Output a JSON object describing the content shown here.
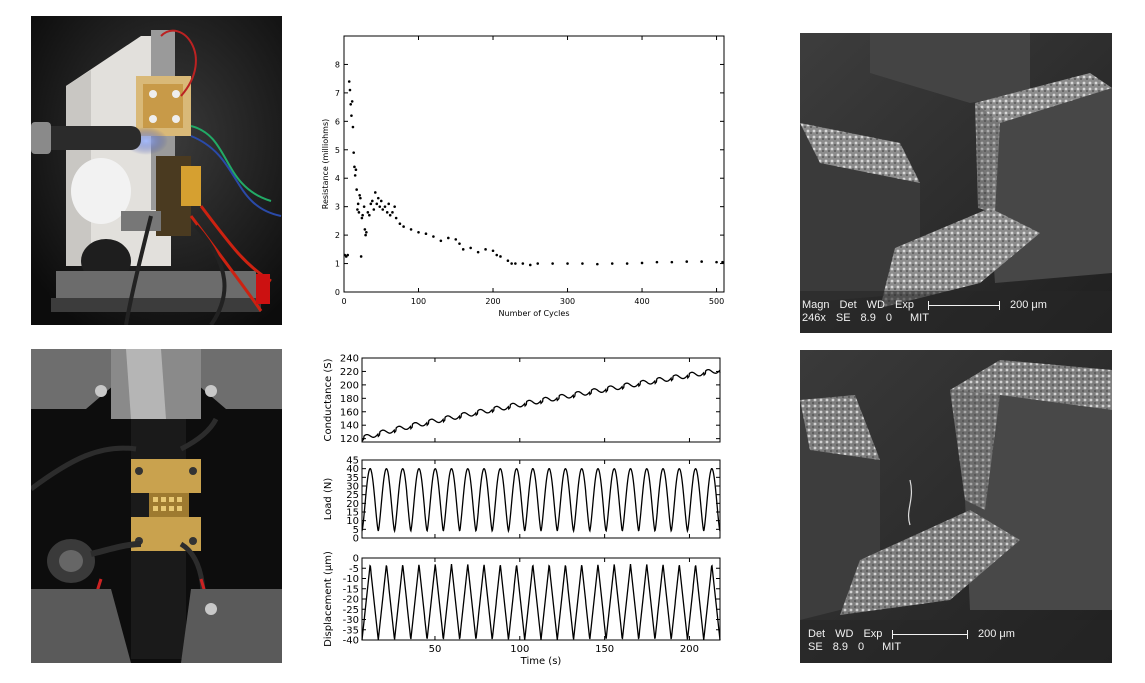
{
  "sem_top": {
    "labels": [
      "Magn",
      "Det",
      "WD",
      "Exp"
    ],
    "values": [
      "246x",
      "SE",
      "8.9",
      "0"
    ],
    "inst": "MIT",
    "scale": "200 μm"
  },
  "sem_bottom": {
    "labels": [
      "Det",
      "WD",
      "Exp"
    ],
    "values": [
      "SE",
      "8.9",
      "0"
    ],
    "inst": "MIT",
    "scale": "200 μm"
  },
  "chart_data": [
    {
      "type": "scatter",
      "xlabel": "Number of Cycles",
      "ylabel": "Resistance (milliohms)",
      "xlim": [
        0,
        510
      ],
      "ylim": [
        0,
        9
      ],
      "xticks": [
        "0",
        "100",
        "200",
        "300",
        "400",
        "500"
      ],
      "yticks": [
        "0",
        "1",
        "2",
        "3",
        "4",
        "5",
        "6",
        "7",
        "8"
      ],
      "points": [
        [
          1,
          1.3
        ],
        [
          3,
          1.25
        ],
        [
          5,
          1.3
        ],
        [
          7,
          7.4
        ],
        [
          8,
          7.1
        ],
        [
          9,
          6.6
        ],
        [
          10,
          6.2
        ],
        [
          11,
          6.7
        ],
        [
          12,
          5.8
        ],
        [
          13,
          4.9
        ],
        [
          14,
          4.4
        ],
        [
          15,
          4.1
        ],
        [
          16,
          4.3
        ],
        [
          17,
          3.6
        ],
        [
          18,
          2.9
        ],
        [
          19,
          3.1
        ],
        [
          20,
          2.8
        ],
        [
          21,
          3.4
        ],
        [
          22,
          3.3
        ],
        [
          23,
          1.25
        ],
        [
          24,
          2.6
        ],
        [
          25,
          2.7
        ],
        [
          27,
          3.0
        ],
        [
          28,
          2.2
        ],
        [
          29,
          2.0
        ],
        [
          30,
          2.1
        ],
        [
          32,
          2.8
        ],
        [
          34,
          2.7
        ],
        [
          36,
          3.1
        ],
        [
          38,
          3.2
        ],
        [
          40,
          2.9
        ],
        [
          42,
          3.5
        ],
        [
          44,
          3.1
        ],
        [
          46,
          3.3
        ],
        [
          48,
          3.0
        ],
        [
          50,
          3.2
        ],
        [
          52,
          2.9
        ],
        [
          55,
          3.0
        ],
        [
          58,
          2.8
        ],
        [
          60,
          3.1
        ],
        [
          62,
          2.7
        ],
        [
          65,
          2.8
        ],
        [
          68,
          3.0
        ],
        [
          70,
          2.6
        ],
        [
          75,
          2.4
        ],
        [
          80,
          2.3
        ],
        [
          90,
          2.2
        ],
        [
          100,
          2.1
        ],
        [
          110,
          2.05
        ],
        [
          120,
          1.95
        ],
        [
          130,
          1.8
        ],
        [
          140,
          1.9
        ],
        [
          150,
          1.85
        ],
        [
          155,
          1.7
        ],
        [
          160,
          1.5
        ],
        [
          170,
          1.55
        ],
        [
          180,
          1.4
        ],
        [
          190,
          1.5
        ],
        [
          200,
          1.45
        ],
        [
          205,
          1.3
        ],
        [
          210,
          1.25
        ],
        [
          220,
          1.1
        ],
        [
          225,
          1.0
        ],
        [
          230,
          1.0
        ],
        [
          240,
          1.0
        ],
        [
          250,
          0.95
        ],
        [
          260,
          1.0
        ],
        [
          280,
          1.0
        ],
        [
          300,
          1.0
        ],
        [
          320,
          1.0
        ],
        [
          340,
          0.98
        ],
        [
          360,
          1.0
        ],
        [
          380,
          1.0
        ],
        [
          400,
          1.02
        ],
        [
          420,
          1.05
        ],
        [
          440,
          1.05
        ],
        [
          460,
          1.07
        ],
        [
          480,
          1.07
        ],
        [
          500,
          1.05
        ],
        [
          508,
          1.05
        ]
      ]
    },
    {
      "type": "line",
      "ylabel": "Conductance (S)",
      "xlim": [
        7,
        218
      ],
      "ylim": [
        115,
        240
      ],
      "yticks": [
        "120",
        "140",
        "160",
        "180",
        "200",
        "220",
        "240"
      ],
      "start": 120,
      "end": 222
    },
    {
      "type": "line",
      "ylabel": "Load (N)",
      "xlim": [
        7,
        218
      ],
      "ylim": [
        0,
        45
      ],
      "yticks": [
        "0",
        "5",
        "10",
        "15",
        "20",
        "25",
        "30",
        "35",
        "40",
        "45"
      ],
      "cycles": 22,
      "min": 4,
      "max": 40
    },
    {
      "type": "line",
      "xlabel": "Time (s)",
      "ylabel": "Displacement (μm)",
      "xlim": [
        7,
        218
      ],
      "ylim": [
        -40,
        0
      ],
      "xticks": [
        "50",
        "100",
        "150",
        "200"
      ],
      "yticks": [
        "-40",
        "-35",
        "-30",
        "-25",
        "-20",
        "-15",
        "-10",
        "-5",
        "0"
      ],
      "cycles": 22,
      "min": -40,
      "max": -3
    }
  ]
}
